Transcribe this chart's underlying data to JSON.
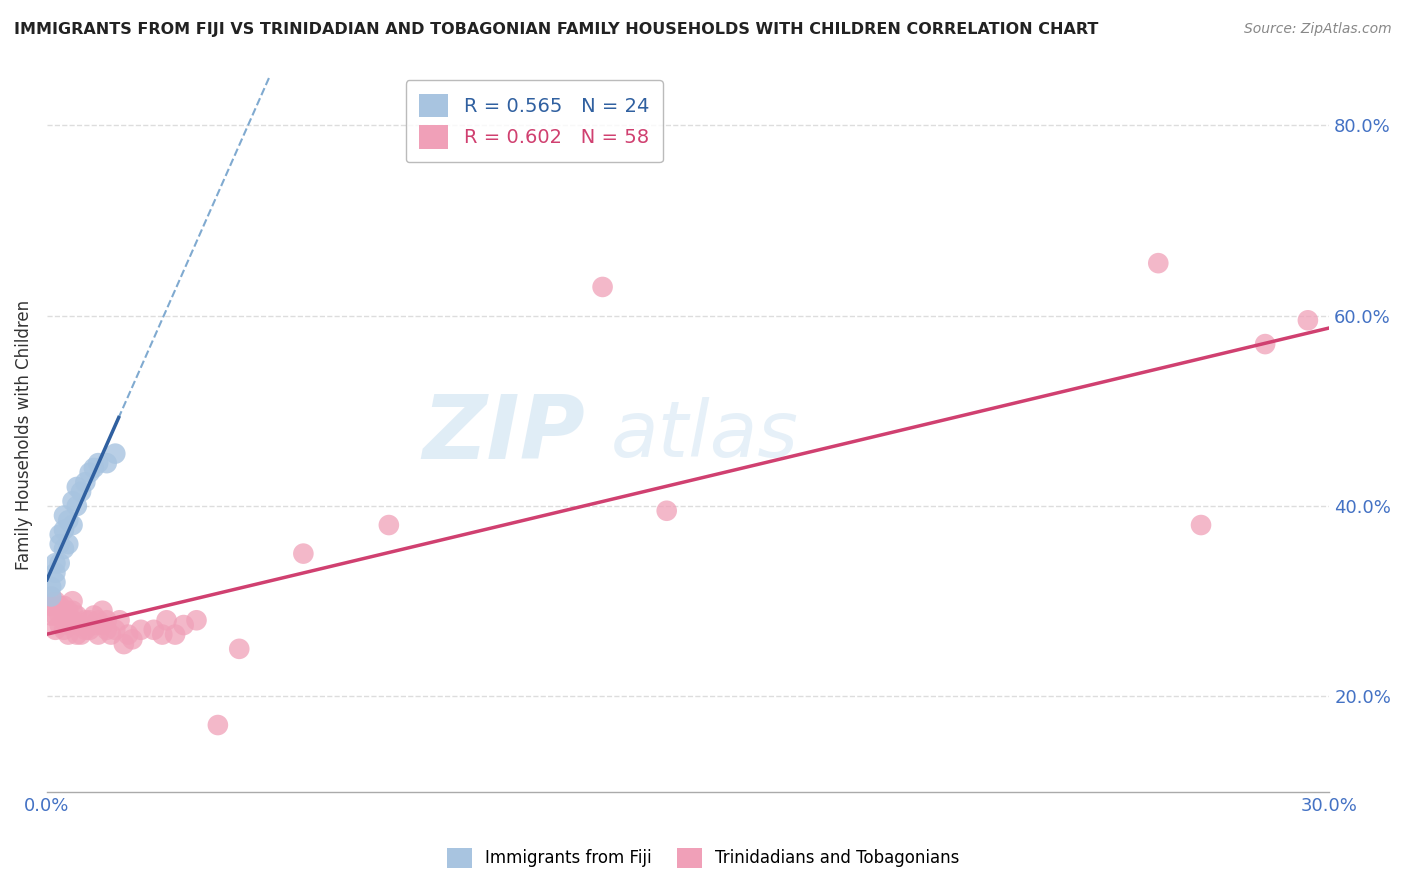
{
  "title": "IMMIGRANTS FROM FIJI VS TRINIDADIAN AND TOBAGONIAN FAMILY HOUSEHOLDS WITH CHILDREN CORRELATION CHART",
  "source": "Source: ZipAtlas.com",
  "ylabel": "Family Households with Children",
  "xlim": [
    0.0,
    0.3
  ],
  "ylim": [
    0.1,
    0.85
  ],
  "xticks": [
    0.0,
    0.05,
    0.1,
    0.15,
    0.2,
    0.25,
    0.3
  ],
  "yticks": [
    0.2,
    0.4,
    0.6,
    0.8
  ],
  "yticklabels": [
    "20.0%",
    "40.0%",
    "60.0%",
    "80.0%"
  ],
  "fiji_color": "#a8c4e0",
  "fiji_line_color": "#3060a0",
  "fiji_dash_color": "#80aad0",
  "tnt_color": "#f0a0b8",
  "tnt_line_color": "#d04070",
  "fiji_x": [
    0.001,
    0.001,
    0.002,
    0.002,
    0.002,
    0.003,
    0.003,
    0.003,
    0.004,
    0.004,
    0.004,
    0.005,
    0.005,
    0.006,
    0.006,
    0.007,
    0.007,
    0.008,
    0.009,
    0.01,
    0.011,
    0.012,
    0.014,
    0.016
  ],
  "fiji_y": [
    0.305,
    0.315,
    0.32,
    0.33,
    0.34,
    0.34,
    0.36,
    0.37,
    0.355,
    0.375,
    0.39,
    0.36,
    0.385,
    0.38,
    0.405,
    0.4,
    0.42,
    0.415,
    0.425,
    0.435,
    0.44,
    0.445,
    0.445,
    0.455
  ],
  "tnt_x": [
    0.001,
    0.001,
    0.001,
    0.002,
    0.002,
    0.002,
    0.003,
    0.003,
    0.003,
    0.004,
    0.004,
    0.004,
    0.005,
    0.005,
    0.005,
    0.006,
    0.006,
    0.006,
    0.007,
    0.007,
    0.007,
    0.008,
    0.008,
    0.009,
    0.009,
    0.01,
    0.01,
    0.011,
    0.011,
    0.012,
    0.012,
    0.013,
    0.013,
    0.014,
    0.014,
    0.015,
    0.016,
    0.017,
    0.018,
    0.019,
    0.02,
    0.022,
    0.025,
    0.027,
    0.028,
    0.03,
    0.032,
    0.035,
    0.04,
    0.045,
    0.06,
    0.08,
    0.13,
    0.145,
    0.26,
    0.27,
    0.285,
    0.295
  ],
  "tnt_y": [
    0.285,
    0.295,
    0.305,
    0.27,
    0.285,
    0.3,
    0.275,
    0.285,
    0.295,
    0.27,
    0.28,
    0.295,
    0.265,
    0.275,
    0.29,
    0.28,
    0.29,
    0.3,
    0.265,
    0.275,
    0.285,
    0.265,
    0.275,
    0.27,
    0.28,
    0.27,
    0.28,
    0.275,
    0.285,
    0.265,
    0.28,
    0.275,
    0.29,
    0.27,
    0.28,
    0.265,
    0.27,
    0.28,
    0.255,
    0.265,
    0.26,
    0.27,
    0.27,
    0.265,
    0.28,
    0.265,
    0.275,
    0.28,
    0.17,
    0.25,
    0.35,
    0.38,
    0.63,
    0.395,
    0.655,
    0.38,
    0.57,
    0.595
  ],
  "background_color": "#ffffff",
  "grid_color": "#dddddd",
  "watermark_text": "ZIP",
  "watermark_text2": "atlas",
  "legend_fiji_label": "R = 0.565   N = 24",
  "legend_tnt_label": "R = 0.602   N = 58"
}
